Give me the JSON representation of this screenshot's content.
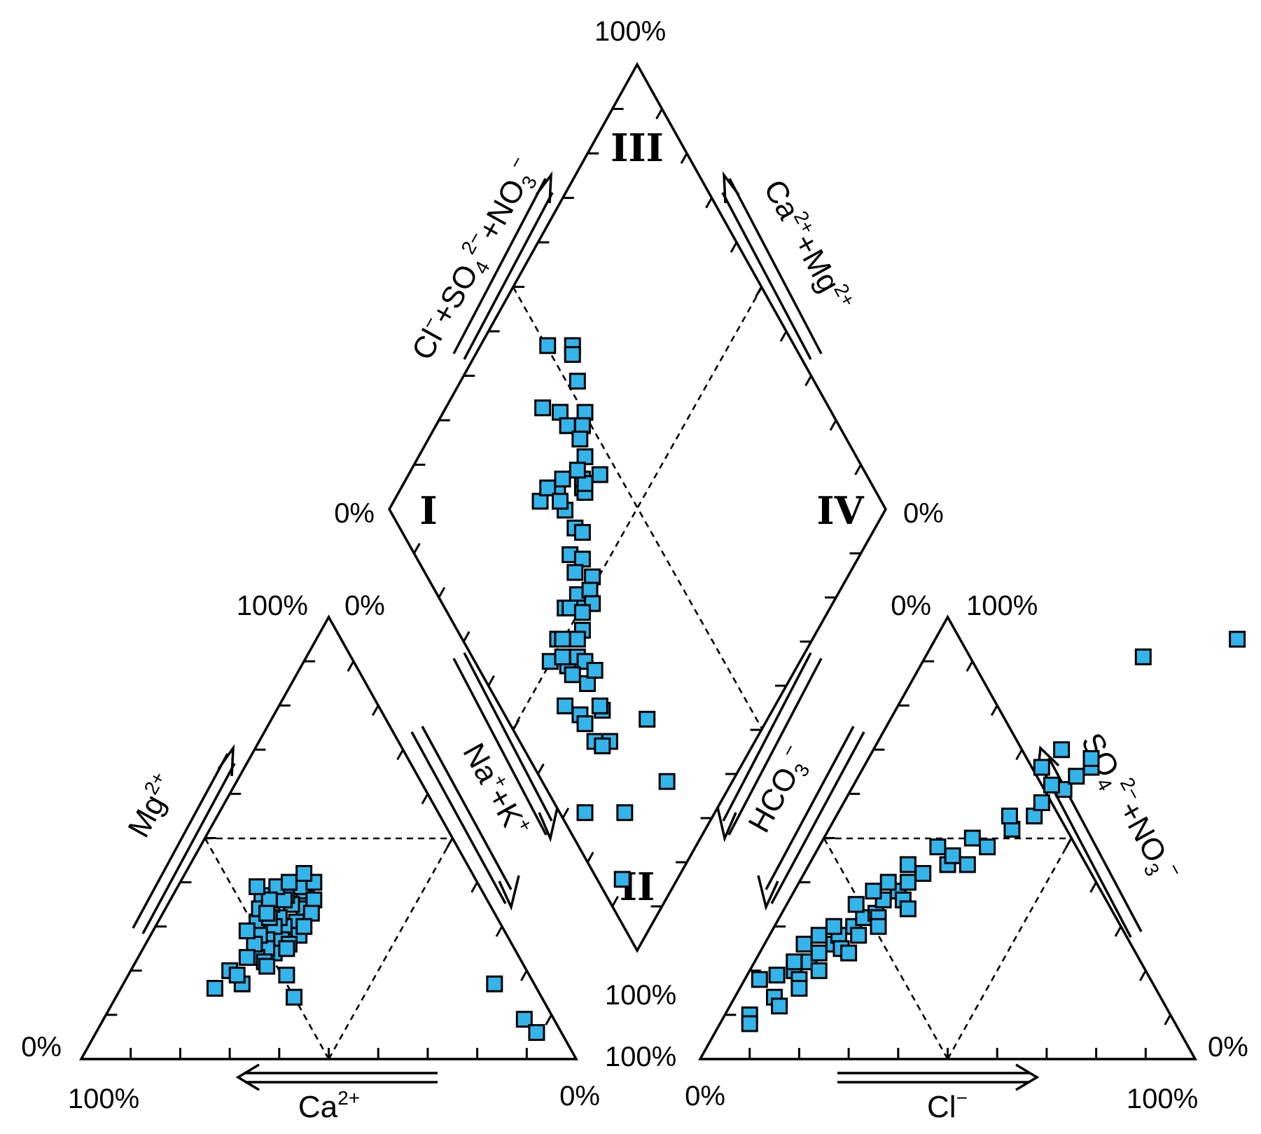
{
  "chart_data": {
    "type": "scatter",
    "chart_kind": "piper-diagram",
    "marker": {
      "shape": "square",
      "fill": "#33b4ea",
      "stroke": "#000000"
    },
    "cation_triangle": {
      "axes": {
        "ca": "Ca2+",
        "mg": "Mg2+",
        "na_k": "Na++K+"
      },
      "ca_label": {
        "base": "Ca",
        "sup": "2+"
      },
      "mg_label": {
        "base": "Mg",
        "sup": "2+"
      },
      "na_label": {
        "na": "Na",
        "na_sup": "+",
        "plus": "+K",
        "k_sup": "+"
      },
      "corner_labels": {
        "top_left": "100%",
        "top_right": "0%",
        "left": "0%",
        "bottom_left": "100%",
        "bottom_right": "0%"
      },
      "points_mg_na": [
        [
          37,
          27
        ],
        [
          34,
          28
        ],
        [
          38,
          26
        ],
        [
          39,
          25
        ],
        [
          36,
          29
        ],
        [
          40,
          27
        ],
        [
          42,
          24
        ],
        [
          35,
          25
        ],
        [
          33,
          30
        ],
        [
          37,
          23
        ],
        [
          31,
          28
        ],
        [
          30,
          26
        ],
        [
          32,
          24
        ],
        [
          28,
          30
        ],
        [
          27,
          27
        ],
        [
          26,
          29
        ],
        [
          24,
          27
        ],
        [
          29,
          22
        ],
        [
          31,
          20
        ],
        [
          33,
          21
        ],
        [
          35,
          21
        ],
        [
          36,
          23
        ],
        [
          39,
          20
        ],
        [
          40,
          22
        ],
        [
          37,
          18
        ],
        [
          34,
          19
        ],
        [
          30,
          24
        ],
        [
          27,
          24
        ],
        [
          25,
          25
        ],
        [
          23,
          24
        ],
        [
          22,
          26
        ],
        [
          25,
          29
        ],
        [
          28,
          22
        ],
        [
          36,
          20
        ],
        [
          32,
          22
        ],
        [
          30,
          30
        ],
        [
          26,
          22
        ],
        [
          21,
          27
        ],
        [
          19,
          32
        ],
        [
          14,
          36
        ],
        [
          16,
          19
        ],
        [
          20,
          20
        ],
        [
          17,
          24
        ],
        [
          19,
          22
        ],
        [
          23,
          22
        ],
        [
          39,
          16
        ],
        [
          33,
          21
        ],
        [
          29,
          19
        ],
        [
          17,
          75
        ],
        [
          9,
          85
        ],
        [
          6,
          89
        ]
      ]
    },
    "anion_triangle": {
      "axes": {
        "cl": "Cl-",
        "so4_no3": "SO42-+NO3-",
        "hco3": "HCO3-"
      },
      "cl_label": {
        "base": "Cl",
        "sup": "−"
      },
      "hco3_label": {
        "base": "HCO",
        "sub": "3",
        "sup": "−"
      },
      "so4_label": {
        "base": "SO",
        "sub": "4",
        "sup2": "2−",
        "plus": "+NO",
        "sub2": "3",
        "sup3": "−"
      },
      "corner_labels": {
        "top_left": "0%",
        "top_right": "100%",
        "right": "0%",
        "bottom_right": "100%",
        "bottom_left": "0%"
      },
      "points_so4_cl": [
        [
          18,
          3
        ],
        [
          19,
          6
        ],
        [
          20,
          9
        ],
        [
          18,
          11
        ],
        [
          22,
          11
        ],
        [
          24,
          12
        ],
        [
          26,
          14
        ],
        [
          28,
          14
        ],
        [
          30,
          16
        ],
        [
          32,
          17
        ],
        [
          33,
          19
        ],
        [
          36,
          19
        ],
        [
          38,
          21
        ],
        [
          40,
          22
        ],
        [
          42,
          24
        ],
        [
          44,
          28
        ],
        [
          46,
          28
        ],
        [
          44,
          32
        ],
        [
          48,
          34
        ],
        [
          52,
          37
        ],
        [
          55,
          40
        ],
        [
          58,
          40
        ],
        [
          61,
          43
        ],
        [
          64,
          44
        ],
        [
          66,
          46
        ],
        [
          62,
          40
        ],
        [
          14,
          8
        ],
        [
          10,
          5
        ],
        [
          8,
          6
        ],
        [
          12,
          10
        ],
        [
          16,
          12
        ],
        [
          22,
          8
        ],
        [
          26,
          8
        ],
        [
          28,
          10
        ],
        [
          30,
          12
        ],
        [
          35,
          14
        ],
        [
          38,
          16
        ],
        [
          40,
          18
        ],
        [
          25,
          16
        ],
        [
          32,
          20
        ],
        [
          36,
          23
        ],
        [
          20,
          14
        ],
        [
          24,
          18
        ],
        [
          28,
          18
        ],
        [
          30,
          21
        ],
        [
          34,
          25
        ],
        [
          44,
          20
        ],
        [
          48,
          24
        ],
        [
          50,
          30
        ],
        [
          55,
          35
        ],
        [
          68,
          45
        ],
        [
          70,
          38
        ],
        [
          66,
          36
        ],
        [
          91,
          44
        ],
        [
          95,
          61
        ]
      ]
    },
    "diamond": {
      "axes": {
        "left_axis": "Cl-+SO42-+NO3-",
        "right_axis": "Ca2++Mg2+"
      },
      "left_label": {
        "base": "Cl",
        "sup": "−",
        "plus": "+SO",
        "sub": "4",
        "sup2": "2−",
        "plus2": "+NO",
        "sub2": "3",
        "sup3": "−"
      },
      "right_label": {
        "base": "Ca",
        "sup": "2+",
        "plus": "+Mg",
        "sup2": "2+"
      },
      "corner_labels": {
        "top": "100%",
        "left": "0%",
        "right": "0%",
        "bottom_upper": "100%",
        "bottom_lower": "100%"
      },
      "zone_labels": [
        "I",
        "II",
        "III",
        "IV"
      ],
      "points_anion_cation": [
        [
          86,
          50
        ],
        [
          80,
          42
        ],
        [
          81,
          55
        ],
        [
          80,
          54
        ],
        [
          76,
          45
        ],
        [
          76,
          52
        ],
        [
          73,
          45
        ],
        [
          71,
          50
        ],
        [
          70,
          48
        ],
        [
          69,
          46
        ],
        [
          66,
          45
        ],
        [
          63,
          41
        ],
        [
          61,
          46
        ],
        [
          64,
          42
        ],
        [
          62,
          41
        ],
        [
          64,
          35
        ],
        [
          63,
          42
        ],
        [
          66,
          42
        ],
        [
          68,
          36
        ],
        [
          70,
          31
        ],
        [
          70,
          34
        ],
        [
          68,
          38
        ],
        [
          66,
          35
        ],
        [
          60,
          35
        ],
        [
          58,
          36
        ],
        [
          58,
          31
        ],
        [
          55,
          33
        ],
        [
          55,
          30
        ],
        [
          52,
          28
        ],
        [
          50,
          27
        ],
        [
          51,
          33
        ],
        [
          50,
          31
        ],
        [
          48,
          30
        ],
        [
          53,
          24
        ],
        [
          51,
          19
        ],
        [
          52,
          25
        ],
        [
          46,
          18
        ],
        [
          49,
          27
        ],
        [
          47,
          25
        ],
        [
          45,
          21
        ],
        [
          47,
          23
        ],
        [
          50,
          20
        ],
        [
          43,
          22
        ],
        [
          40,
          20
        ],
        [
          38,
          15
        ],
        [
          42,
          13
        ],
        [
          44,
          18
        ],
        [
          50,
          15
        ],
        [
          48,
          18
        ],
        [
          40,
          23
        ],
        [
          36,
          15
        ],
        [
          34,
          20
        ],
        [
          32,
          15
        ],
        [
          29,
          18
        ],
        [
          30,
          16
        ],
        [
          35,
          20
        ],
        [
          26,
          5
        ],
        [
          18,
          13
        ],
        [
          11,
          5
        ],
        [
          13,
          25
        ],
        [
          24,
          28
        ]
      ]
    }
  }
}
